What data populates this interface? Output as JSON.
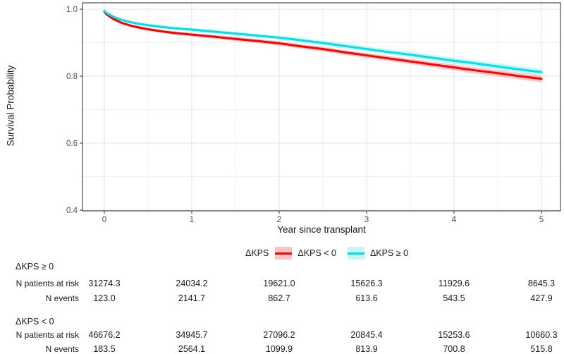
{
  "chart_data": {
    "type": "line",
    "title": "",
    "xlabel": "Year since transplant",
    "ylabel": "Survival Probability",
    "xlim": [
      -0.25,
      5.22
    ],
    "ylim": [
      0.4,
      1.02
    ],
    "grid": "on",
    "x_ticks": [
      0,
      1,
      2,
      3,
      4,
      5
    ],
    "x_tick_labels": [
      "0",
      "1",
      "2",
      "3",
      "4",
      "5"
    ],
    "x_minor_ticks": [
      0.5,
      1.5,
      2.5,
      3.5,
      4.5
    ],
    "y_ticks": [
      1.0,
      0.8,
      0.6,
      0.4
    ],
    "y_tick_labels": [
      "1.0",
      "0.8",
      "0.6",
      "0.4"
    ],
    "y_minor_ticks": [
      0.9,
      0.7,
      0.5
    ],
    "x": [
      0,
      0.02,
      0.05,
      0.1,
      0.15,
      0.2,
      0.3,
      0.4,
      0.5,
      0.65,
      0.8,
      1,
      1.25,
      1.5,
      1.75,
      2,
      2.25,
      2.5,
      2.75,
      3,
      3.25,
      3.5,
      3.75,
      4,
      4.25,
      4.5,
      4.75,
      5
    ],
    "series": [
      {
        "name": "ΔKPS < 0",
        "color": "#ff0000",
        "ribbon_color": "#ff0000",
        "values": [
          0.993,
          0.986,
          0.98,
          0.971,
          0.965,
          0.959,
          0.951,
          0.945,
          0.94,
          0.934,
          0.929,
          0.924,
          0.918,
          0.911,
          0.905,
          0.898,
          0.889,
          0.881,
          0.871,
          0.862,
          0.853,
          0.844,
          0.835,
          0.826,
          0.817,
          0.809,
          0.8,
          0.792
        ]
      },
      {
        "name": "ΔKPS ≥ 0",
        "color": "#00dfe6",
        "ribbon_color": "#00dfe6",
        "values": [
          0.995,
          0.99,
          0.985,
          0.978,
          0.972,
          0.968,
          0.961,
          0.956,
          0.952,
          0.947,
          0.943,
          0.939,
          0.933,
          0.927,
          0.921,
          0.915,
          0.907,
          0.899,
          0.89,
          0.881,
          0.872,
          0.864,
          0.855,
          0.846,
          0.838,
          0.829,
          0.82,
          0.812
        ]
      }
    ],
    "legend": {
      "position": "bottom",
      "title": "ΔKPS",
      "entries": [
        {
          "label": "ΔKPS < 0",
          "line_color": "#ff0000",
          "fill_color": "#f9c5c1"
        },
        {
          "label": "ΔKPS ≥ 0",
          "line_color": "#00dfe6",
          "fill_color": "#c9f4f6"
        }
      ]
    },
    "risk_table": {
      "time_points": [
        0,
        1,
        2,
        3,
        4,
        5
      ],
      "groups": [
        {
          "name": "ΔKPS ≥ 0",
          "rows": [
            {
              "label": "N patients at risk",
              "values": [
                "31274.3",
                "24034.2",
                "19621.0",
                "15626.3",
                "11929.6",
                "8645.3"
              ]
            },
            {
              "label": "N events",
              "values": [
                "123.0",
                "2141.7",
                "862.7",
                "613.6",
                "543.5",
                "427.9"
              ]
            }
          ]
        },
        {
          "name": "ΔKPS < 0",
          "rows": [
            {
              "label": "N patients at risk",
              "values": [
                "46676.2",
                "34945.7",
                "27096.2",
                "20845.4",
                "15253.6",
                "10660.3"
              ]
            },
            {
              "label": "N events",
              "values": [
                "183.5",
                "2564.1",
                "1099.9",
                "813.9",
                "700.8",
                "515.8"
              ]
            }
          ]
        }
      ]
    },
    "colors": {
      "panel_border": "#4d4d4d",
      "major_grid": "#e3e3e3",
      "minor_grid": "#f1f1f1",
      "tick_text": "#4d4d4d",
      "axis_text": "#1a1a1a"
    }
  }
}
